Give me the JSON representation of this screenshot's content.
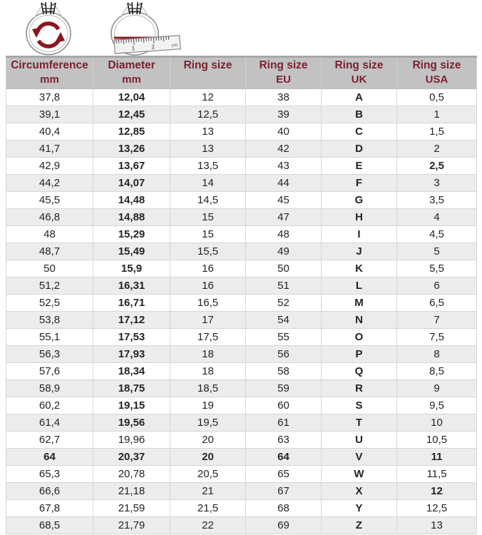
{
  "styles": {
    "header_bg": "#c3c2c2",
    "header_text_color": "#7b2130",
    "row_alt_bg": "#ececec",
    "body_text_color": "#242424",
    "accent_red": "#8b1721"
  },
  "illustrations": {
    "circumference_ring": "ring sketch with red circular rotation arrows",
    "diameter_ring": "ring sketch with red diameter line measured by ruler",
    "ruler_labels": [
      "1",
      "2",
      "cm"
    ]
  },
  "chart_data": {
    "type": "table",
    "title": "Ring size conversion table",
    "columns": [
      {
        "label": "Circumference",
        "sub": "mm"
      },
      {
        "label": "Diameter",
        "sub": "mm"
      },
      {
        "label": "Ring size",
        "sub": ""
      },
      {
        "label": "Ring size",
        "sub": "EU"
      },
      {
        "label": "Ring size",
        "sub": "UK"
      },
      {
        "label": "Ring size",
        "sub": "USA"
      }
    ],
    "rows": [
      [
        "37,8",
        "12,04",
        "12",
        "38",
        "A",
        "0,5"
      ],
      [
        "39,1",
        "12,45",
        "12,5",
        "39",
        "B",
        "1"
      ],
      [
        "40,4",
        "12,85",
        "13",
        "40",
        "C",
        "1,5"
      ],
      [
        "41,7",
        "13,26",
        "13",
        "42",
        "D",
        "2"
      ],
      [
        "42,9",
        "13,67",
        "13,5",
        "43",
        "E",
        "2,5"
      ],
      [
        "44,2",
        "14,07",
        "14",
        "44",
        "F",
        "3"
      ],
      [
        "45,5",
        "14,48",
        "14,5",
        "45",
        "G",
        "3,5"
      ],
      [
        "46,8",
        "14,88",
        "15",
        "47",
        "H",
        "4"
      ],
      [
        "48",
        "15,29",
        "15",
        "48",
        "I",
        "4,5"
      ],
      [
        "48,7",
        "15,49",
        "15,5",
        "49",
        "J",
        "5"
      ],
      [
        "50",
        "15,9",
        "16",
        "50",
        "K",
        "5,5"
      ],
      [
        "51,2",
        "16,31",
        "16",
        "51",
        "L",
        "6"
      ],
      [
        "52,5",
        "16,71",
        "16,5",
        "52",
        "M",
        "6,5"
      ],
      [
        "53,8",
        "17,12",
        "17",
        "54",
        "N",
        "7"
      ],
      [
        "55,1",
        "17,53",
        "17,5",
        "55",
        "O",
        "7,5"
      ],
      [
        "56,3",
        "17,93",
        "18",
        "56",
        "P",
        "8"
      ],
      [
        "57,6",
        "18,34",
        "18",
        "58",
        "Q",
        "8,5"
      ],
      [
        "58,9",
        "18,75",
        "18,5",
        "59",
        "R",
        "9"
      ],
      [
        "60,2",
        "19,15",
        "19",
        "60",
        "S",
        "9,5"
      ],
      [
        "61,4",
        "19,56",
        "19,5",
        "61",
        "T",
        "10"
      ],
      [
        "62,7",
        "19,96",
        "20",
        "63",
        "U",
        "10,5"
      ],
      [
        "64",
        "20,37",
        "20",
        "64",
        "V",
        "11"
      ],
      [
        "65,3",
        "20,78",
        "20,5",
        "65",
        "W",
        "11,5"
      ],
      [
        "66,6",
        "21,18",
        "21",
        "67",
        "X",
        "12"
      ],
      [
        "67,8",
        "21,59",
        "21,5",
        "68",
        "Y",
        "12,5"
      ],
      [
        "68,5",
        "21,79",
        "22",
        "69",
        "Z",
        "13"
      ]
    ],
    "bold": {
      "columns": {
        "2": [
          1,
          20
        ],
        "5": [
          1,
          26
        ]
      },
      "cells": [
        [
          5,
          6
        ],
        [
          22,
          1
        ],
        [
          22,
          2
        ],
        [
          22,
          3
        ],
        [
          22,
          4
        ],
        [
          22,
          6
        ],
        [
          24,
          6
        ]
      ]
    }
  }
}
